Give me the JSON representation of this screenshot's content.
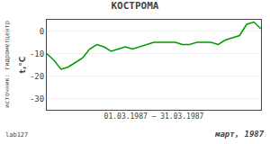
{
  "chart_data": {
    "type": "line",
    "title": "КОСТРОМА",
    "x_label": "01.03.1987 – 31.03.1987",
    "y_label": "t,°C",
    "annotations": [
      "март, 1987",
      "источник: гидрометцентр",
      "lab127"
    ],
    "x": [
      1,
      2,
      3,
      4,
      5,
      6,
      7,
      8,
      9,
      10,
      11,
      12,
      13,
      14,
      15,
      16,
      17,
      18,
      19,
      20,
      21,
      22,
      23,
      24,
      25,
      26,
      27,
      28,
      29,
      30,
      31
    ],
    "values": [
      -10,
      -13,
      -17,
      -16,
      -14,
      -12,
      -8,
      -6,
      -7,
      -9,
      -8,
      -7,
      -8,
      -7,
      -6,
      -5,
      -5,
      -5,
      -5,
      -6,
      -6,
      -5,
      -5,
      -5,
      -6,
      -4,
      -3,
      -2,
      3,
      4,
      1
    ],
    "color": "#009900",
    "xlim": [
      1,
      31
    ],
    "ylim": [
      -35,
      5
    ],
    "yticks": [
      0,
      -10,
      -20,
      -30
    ],
    "grid": true,
    "tick_labels": "y"
  }
}
